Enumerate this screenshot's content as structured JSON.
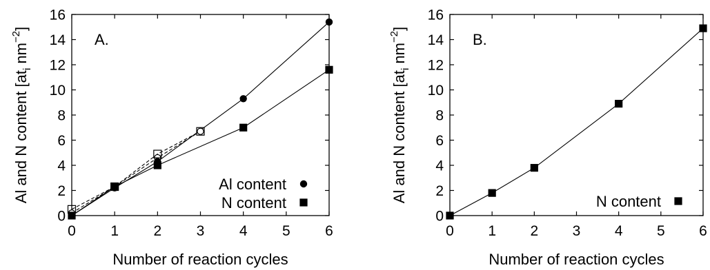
{
  "chart_data": [
    {
      "type": "line",
      "panel_label": "A.",
      "xlabel": "Number of reaction cycles",
      "ylabel": "Al and N content [at",
      "ylabel_subscript": "i",
      "ylabel_unit": " nm",
      "ylabel_superscript": "−2",
      "ylabel_close": "]",
      "xlim": [
        0,
        6
      ],
      "ylim": [
        0,
        16
      ],
      "x_ticks": [
        "0",
        "1",
        "2",
        "3",
        "4",
        "5",
        "6"
      ],
      "y_ticks": [
        "0",
        "2",
        "4",
        "6",
        "8",
        "10",
        "12",
        "14",
        "16"
      ],
      "grid": false,
      "legend_position": "bottom-right",
      "series": [
        {
          "name": "Al content",
          "marker": "circle",
          "filled": true,
          "line": "solid",
          "legend": true,
          "x": [
            0,
            1,
            2,
            4,
            6
          ],
          "y": [
            0,
            2.2,
            4.3,
            9.3,
            15.4
          ]
        },
        {
          "name": "N content",
          "marker": "square",
          "filled": true,
          "line": "solid",
          "legend": true,
          "x": [
            0,
            1,
            2,
            4,
            6
          ],
          "y": [
            0,
            2.3,
            4.0,
            7.0,
            11.6
          ]
        },
        {
          "marker": "circle",
          "filled": false,
          "line": "dashed",
          "legend": false,
          "x": [
            0,
            1,
            2,
            3
          ],
          "y": [
            0.2,
            2.3,
            4.6,
            6.7
          ]
        },
        {
          "marker": "square",
          "filled": false,
          "line": "dashed",
          "legend": false,
          "x": [
            0,
            1,
            2,
            3
          ],
          "y": [
            0.5,
            2.3,
            4.9,
            6.7
          ]
        }
      ]
    },
    {
      "type": "line",
      "panel_label": "B.",
      "xlabel": "Number of reaction cycles",
      "ylabel": "Al and N content [at",
      "ylabel_subscript": "i",
      "ylabel_unit": " nm",
      "ylabel_superscript": "−2",
      "ylabel_close": "]",
      "xlim": [
        0,
        6
      ],
      "ylim": [
        0,
        16
      ],
      "x_ticks": [
        "0",
        "1",
        "2",
        "3",
        "4",
        "5",
        "6"
      ],
      "y_ticks": [
        "0",
        "2",
        "4",
        "6",
        "8",
        "10",
        "12",
        "14",
        "16"
      ],
      "grid": false,
      "legend_position": "bottom-right",
      "series": [
        {
          "name": "N content",
          "marker": "square",
          "filled": true,
          "line": "solid",
          "legend": true,
          "x": [
            0,
            1,
            2,
            4,
            6
          ],
          "y": [
            0,
            1.8,
            3.8,
            8.9,
            14.9
          ]
        }
      ]
    }
  ]
}
